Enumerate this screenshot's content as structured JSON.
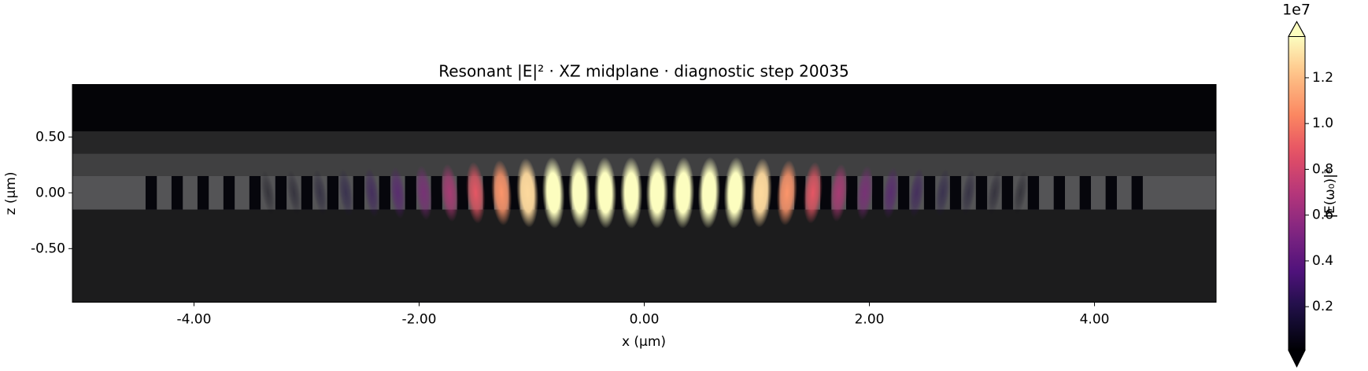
{
  "chart_data": {
    "type": "heatmap",
    "title": "Resonant |E|² · XZ midplane · diagnostic step 20035",
    "x_label": "x (µm)",
    "y_label": "z (µm)",
    "xlim": [
      -5.08,
      5.08
    ],
    "ylim": [
      -0.98,
      0.97
    ],
    "xticks": [
      {
        "value": -4,
        "label": "-4.00"
      },
      {
        "value": -2,
        "label": "-2.00"
      },
      {
        "value": 0,
        "label": "0.00"
      },
      {
        "value": 2,
        "label": "2.00"
      },
      {
        "value": 4,
        "label": "4.00"
      }
    ],
    "yticks": [
      {
        "value": 0.5,
        "label": "0.50"
      },
      {
        "value": 0,
        "label": "0.00"
      },
      {
        "value": -0.5,
        "label": "-0.50"
      }
    ],
    "layers": [
      {
        "x": [
          -5.08,
          5.08
        ],
        "z": [
          -0.98,
          0.97
        ],
        "color": "#1c1c1d"
      },
      {
        "x": [
          -5.08,
          5.08
        ],
        "z": [
          0.55,
          0.97
        ],
        "color": "#040407"
      },
      {
        "x": [
          -5.08,
          5.08
        ],
        "z": [
          0.35,
          0.55
        ],
        "color": "#262627"
      },
      {
        "x": [
          -5.08,
          5.08
        ],
        "z": [
          0.15,
          0.35
        ],
        "color": "#404041"
      },
      {
        "x": [
          -5.08,
          5.08
        ],
        "z": [
          -0.15,
          0.15
        ],
        "color": "#545456"
      }
    ],
    "holes": {
      "x_start": -4.38,
      "period": 0.2305,
      "width": 0.1,
      "count": 39,
      "z": [
        -0.15,
        0.15
      ],
      "color": "#06060c"
    },
    "x": [
      -3.342,
      -3.112,
      -2.881,
      -2.651,
      -2.42,
      -2.19,
      -1.959,
      -1.729,
      -1.498,
      -1.268,
      -1.037,
      -0.807,
      -0.576,
      -0.346,
      -0.115,
      0.115,
      0.346,
      0.576,
      0.807,
      1.037,
      1.268,
      1.498,
      1.729,
      1.959,
      2.19,
      2.42,
      2.651,
      2.881,
      3.112,
      3.342
    ],
    "values": [
      0.05,
      0.08,
      0.13,
      0.2,
      0.28,
      0.4,
      0.54,
      0.7,
      0.89,
      1.08,
      1.28,
      1.47,
      1.62,
      1.73,
      1.79,
      1.79,
      1.73,
      1.62,
      1.47,
      1.28,
      1.08,
      0.89,
      0.7,
      0.54,
      0.4,
      0.28,
      0.2,
      0.13,
      0.08,
      0.05
    ],
    "colormap": "magma",
    "colorbar": {
      "label": "|E(ω₀)|²",
      "offset_label": "1e7",
      "clim": [
        0.01,
        1.38
      ],
      "extend": "both",
      "ticks": [
        0.2,
        0.4,
        0.6,
        0.8,
        {
          "value": 1,
          "label": "1.0"
        },
        1.2
      ]
    }
  }
}
